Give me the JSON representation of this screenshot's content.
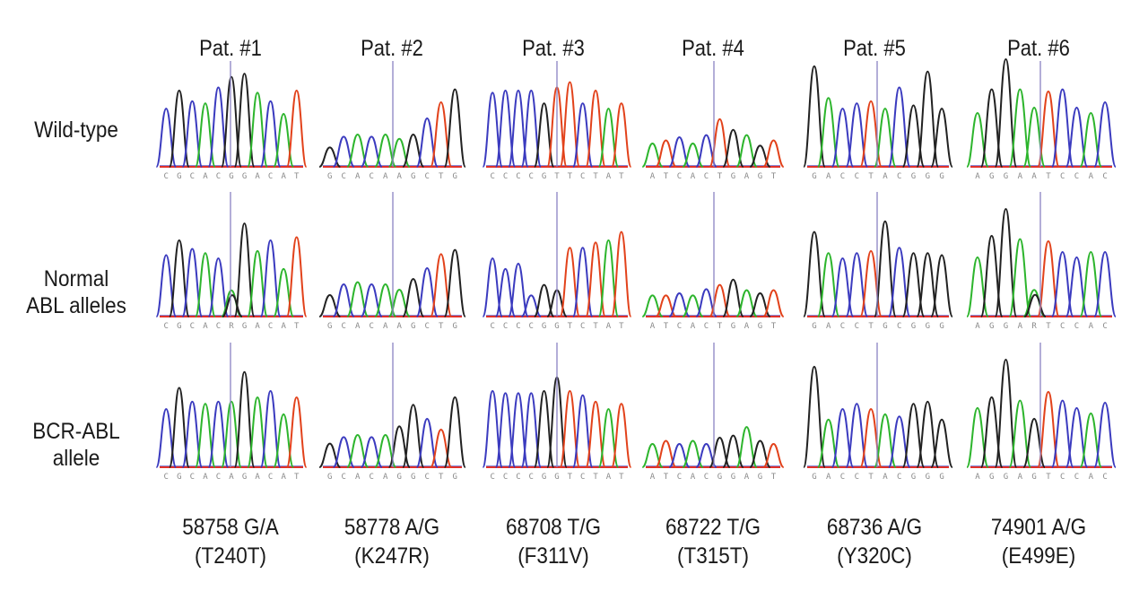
{
  "colors": {
    "A": "#2db52d",
    "C": "#3b3bbf",
    "G": "#222222",
    "T": "#e2421b",
    "cursor": "#8a82c4",
    "baseline_red": "#e0302a",
    "seq_text": "#8a8a8a"
  },
  "patients": [
    {
      "label": "Pat. #1",
      "mutation": "58758 G/A",
      "change": "(T240T)",
      "sequences": [
        "CGCACGGACAT",
        "CGCACRGACAT",
        "CGCACAGACAT"
      ]
    },
    {
      "label": "Pat. #2",
      "mutation": "58778 A/G",
      "change": "(K247R)",
      "sequences": [
        "GCACAAGCTG",
        "GCACAAGCTG",
        "GCACAGGCTG"
      ]
    },
    {
      "label": "Pat. #3",
      "mutation": "68708 T/G",
      "change": "(F311V)",
      "sequences": [
        "CCCCGTTCTAT",
        "CCCCGGTCTAT",
        "CCCCGGTCTAT"
      ]
    },
    {
      "label": "Pat. #4",
      "mutation": "68722 T/G",
      "change": "(T315T)",
      "sequences": [
        "ATCACTGAGT",
        "ATCACTGAGT",
        "ATCACGGAGT"
      ]
    },
    {
      "label": "Pat. #5",
      "mutation": "68736 A/G",
      "change": "(Y320C)",
      "sequences": [
        "GACCTACGGG",
        "GACCTGCGGG",
        "GACCTACGGG"
      ]
    },
    {
      "label": "Pat. #6",
      "mutation": "74901 A/G",
      "change": "(E499E)",
      "sequences": [
        "AGGAATCCAC",
        "AGGARTCCAC",
        "AGGAGTCCAC"
      ]
    }
  ],
  "rows": [
    {
      "lines": [
        "Wild-type"
      ]
    },
    {
      "lines": [
        "Normal",
        "ABL alleles"
      ]
    },
    {
      "lines": [
        "BCR-ABL",
        "allele"
      ]
    }
  ]
}
